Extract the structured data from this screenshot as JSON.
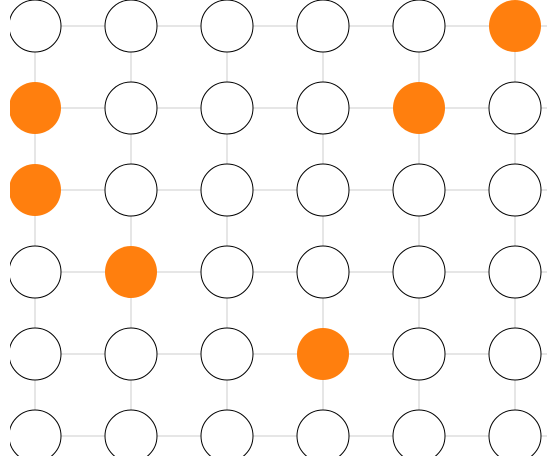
{
  "board": {
    "rows": 6,
    "cols": 6,
    "colors": {
      "filled": "#ff7f0e",
      "empty_fill": "#ffffff",
      "empty_stroke": "#000000",
      "grid": "#e6e6e6"
    },
    "cells": [
      [
        0,
        0,
        0,
        0,
        0,
        1
      ],
      [
        1,
        0,
        0,
        0,
        1,
        0
      ],
      [
        1,
        0,
        0,
        0,
        0,
        0
      ],
      [
        0,
        1,
        0,
        0,
        0,
        0
      ],
      [
        0,
        0,
        0,
        1,
        0,
        0
      ],
      [
        0,
        0,
        0,
        0,
        0,
        0
      ]
    ]
  }
}
